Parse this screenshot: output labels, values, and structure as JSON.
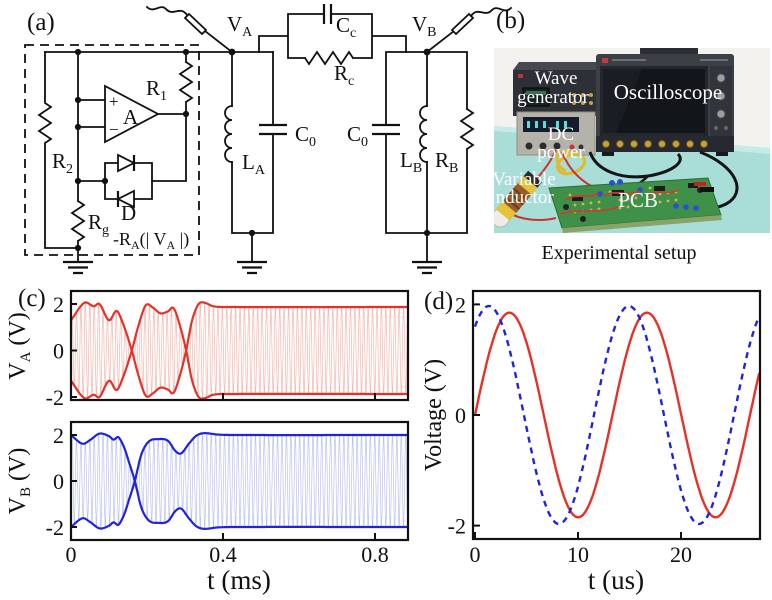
{
  "panels": {
    "a": "(a)",
    "b": "(b)",
    "c": "(c)",
    "d": "(d)"
  },
  "circuit": {
    "labels": {
      "va": {
        "m": "V",
        "s": "A"
      },
      "vb": {
        "m": "V",
        "s": "B"
      },
      "r1": {
        "m": "R",
        "s": "1"
      },
      "r2": {
        "m": "R",
        "s": "2"
      },
      "rg": {
        "m": "R",
        "s": "g"
      },
      "la": {
        "m": "L",
        "s": "A"
      },
      "lb": {
        "m": "L",
        "s": "B"
      },
      "rb": {
        "m": "R",
        "s": "B"
      },
      "c0a": {
        "m": "C",
        "s": "0"
      },
      "c0b": {
        "m": "C",
        "s": "0"
      },
      "cc": {
        "m": "C",
        "s": "c"
      },
      "rc": {
        "m": "R",
        "s": "c"
      },
      "opamp": "A",
      "diode": "D",
      "plus": "+",
      "minus": "−",
      "gain": {
        "p1": "-R",
        "s1": "A",
        "p2": "(| V",
        "s2": "A",
        "p3": " |)"
      }
    }
  },
  "photo": {
    "labels": {
      "wave1": "Wave",
      "wave2": "generator",
      "osc": "Oscilloscope",
      "dc1": "DC",
      "dc2": "power",
      "var1": "Variable",
      "var2": "inductor",
      "pcb": "PCB"
    },
    "caption": "Experimental setup",
    "colors": {
      "table": "#a8ddd8",
      "wall": "#f3f2ee",
      "scope_body": "#3b4047",
      "screen": "#121519",
      "pcb": "#3f9149",
      "inductor_band": "#e3c33a",
      "inductor_core": "#9a5c28",
      "cable": "#141414",
      "wire_red": "#c8342c",
      "knob_gold": "#caa23d",
      "dc_body": "#b5b2a9",
      "wavegen_body": "#2d3036"
    }
  },
  "chart_data": [
    {
      "panel": "c",
      "type": "line",
      "xlabel": "t (ms)",
      "xlim": [
        0,
        0.885
      ],
      "xticks": [
        0,
        0.4,
        0.8
      ],
      "note": "amplitude-modulated carrier settling to steady oscillation after t=0.4 ms",
      "carrier_cycles_per_ms": 86,
      "subplots": [
        {
          "ylabel": {
            "m": "V",
            "s": "A",
            "rest": " (V)"
          },
          "color": "#e63226",
          "light": "#f6b6ae",
          "yticks": [
            2,
            0,
            -2
          ],
          "ylim": [
            -2.13,
            2.56
          ],
          "envelope": [
            [
              0,
              1.3
            ],
            [
              0.035,
              2.05
            ],
            [
              0.06,
              1.9
            ],
            [
              0.075,
              2.0
            ],
            [
              0.1,
              1.3
            ],
            [
              0.12,
              1.7
            ],
            [
              0.137,
              1.15
            ],
            [
              0.16,
              0
            ],
            [
              0.178,
              -1.1
            ],
            [
              0.197,
              -1.95
            ],
            [
              0.215,
              -1.85
            ],
            [
              0.235,
              -1.6
            ],
            [
              0.255,
              -1.68
            ],
            [
              0.27,
              -1.82
            ],
            [
              0.287,
              -1.05
            ],
            [
              0.303,
              0
            ],
            [
              0.318,
              1.25
            ],
            [
              0.335,
              1.98
            ],
            [
              0.35,
              2.06
            ],
            [
              0.375,
              1.9
            ],
            [
              0.42,
              1.87
            ],
            [
              0.885,
              1.87
            ]
          ]
        },
        {
          "ylabel": {
            "m": "V",
            "s": "B",
            "rest": " (V)"
          },
          "color": "#2023dd",
          "light": "#b9c2f0",
          "yticks": [
            2,
            0,
            -2
          ],
          "ylim": [
            -2.57,
            2.57
          ],
          "envelope": [
            [
              0,
              2.0
            ],
            [
              0.03,
              1.62
            ],
            [
              0.05,
              1.78
            ],
            [
              0.075,
              2.06
            ],
            [
              0.1,
              1.95
            ],
            [
              0.112,
              1.8
            ],
            [
              0.125,
              1.9
            ],
            [
              0.14,
              1.45
            ],
            [
              0.152,
              0.85
            ],
            [
              0.168,
              0
            ],
            [
              0.185,
              -1.15
            ],
            [
              0.205,
              -1.72
            ],
            [
              0.23,
              -1.82
            ],
            [
              0.255,
              -1.75
            ],
            [
              0.275,
              -1.3
            ],
            [
              0.29,
              -1.2
            ],
            [
              0.31,
              -1.62
            ],
            [
              0.33,
              -1.97
            ],
            [
              0.35,
              -2.08
            ],
            [
              0.385,
              -2.02
            ],
            [
              0.43,
              -2.0
            ],
            [
              0.885,
              -2.0
            ]
          ]
        }
      ]
    },
    {
      "panel": "d",
      "type": "line",
      "xlabel": "t (us)",
      "ylabel": "Voltage (V)",
      "xlim": [
        0,
        27.6
      ],
      "xticks": [
        0,
        10,
        20
      ],
      "yticks": [
        2,
        0,
        -2
      ],
      "ylim": [
        -2.25,
        2.25
      ],
      "series": [
        {
          "name": "VA",
          "color": "#e63226",
          "style": "solid",
          "amplitude": 1.85,
          "period_us": 13.35,
          "shape": "sin",
          "ref_us": 0
        },
        {
          "name": "VB",
          "color": "#2023dd",
          "style": "dashed",
          "amplitude": 1.97,
          "period_us": 13.6,
          "shape": "cos",
          "ref_us": 1.35
        }
      ]
    }
  ]
}
